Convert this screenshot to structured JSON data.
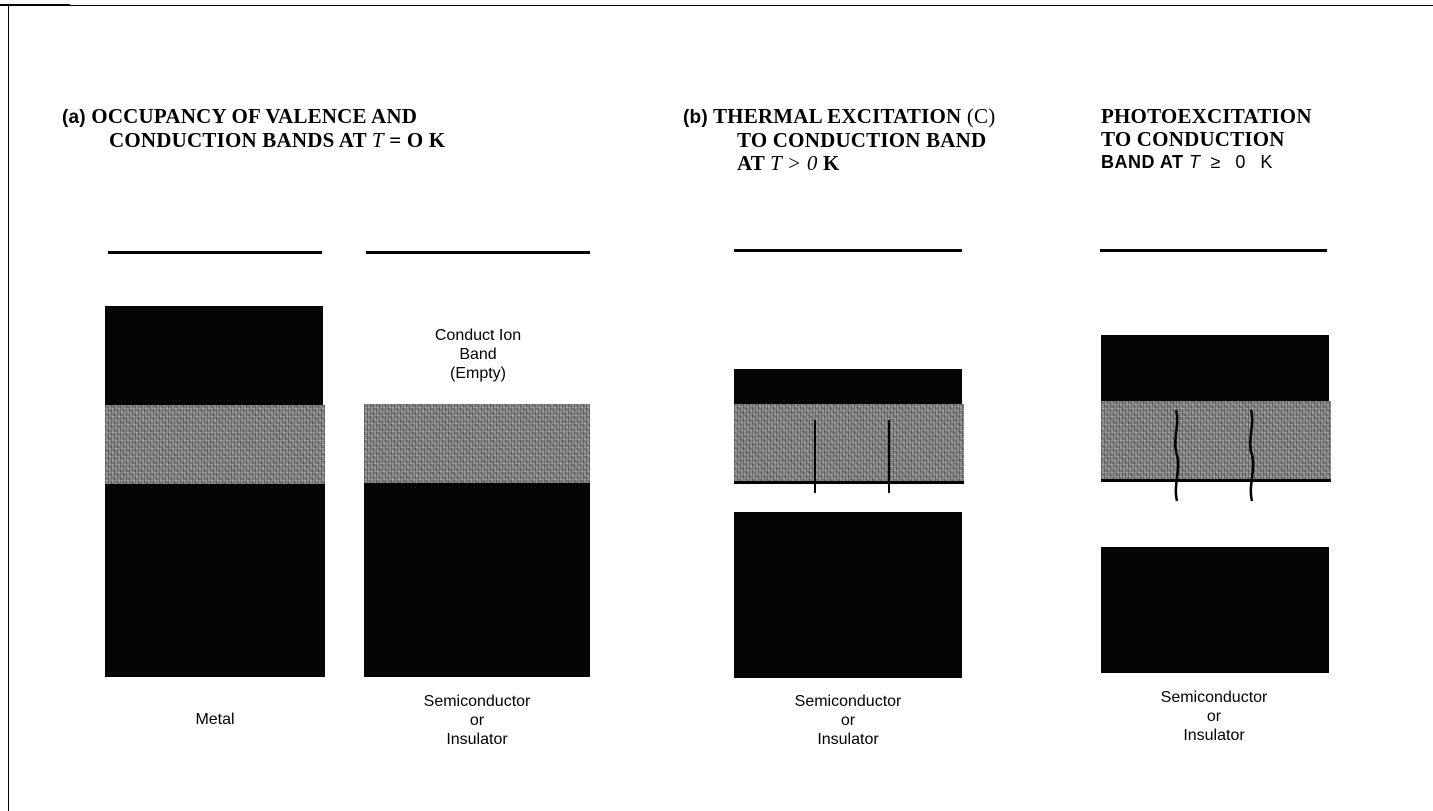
{
  "panel_a": {
    "tag": "(a)",
    "title_line1": "OCCUPANCY OF VALENCE AND",
    "title_line2_pre": "CONDUCTION BANDS AT ",
    "title_var": "T",
    "title_line2_post": " = O K",
    "metal_label": "Metal",
    "conduction_label": [
      "Conduct Ion",
      "Band",
      "(Empty)"
    ],
    "semiconductor_label": [
      "Semiconductor",
      "or",
      "Insulator"
    ]
  },
  "panel_b": {
    "tag": "(b)",
    "title_line1": "THERMAL EXCITATION",
    "tag_c": "(C)",
    "title_line2": "TO CONDUCTION BAND",
    "title_line3_pre": "AT ",
    "title_var": "T > 0",
    "title_line3_post": " K",
    "semiconductor_label": [
      "Semiconductor",
      "or",
      "Insulator"
    ]
  },
  "panel_c": {
    "title_line1": "PHOTOEXCITATION",
    "title_line2": "TO CONDUCTION",
    "title_line3_pre": "BAND AT ",
    "title_var": "T",
    "title_line3_post": " ≥ 0 K",
    "semiconductor_label": [
      "Semiconductor",
      "or",
      "Insulator"
    ]
  }
}
